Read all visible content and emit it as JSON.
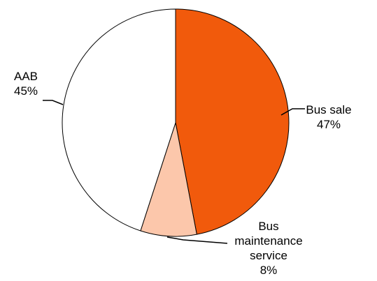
{
  "chart_data": {
    "type": "pie",
    "title": "",
    "start_angle_deg": 0,
    "direction": "clockwise",
    "slices": [
      {
        "name": "Bus sale",
        "value": 47,
        "label_lines": [
          "Bus sale",
          "47%"
        ],
        "color": "#f15a0c"
      },
      {
        "name": "Bus maintenance service",
        "value": 8,
        "label_lines": [
          "Bus",
          "maintenance",
          "service",
          "8%"
        ],
        "color": "#fcc7ab"
      },
      {
        "name": "AAB",
        "value": 45,
        "label_lines": [
          "AAB",
          "45%"
        ],
        "color": "#ffffff"
      }
    ],
    "legend": "none"
  }
}
